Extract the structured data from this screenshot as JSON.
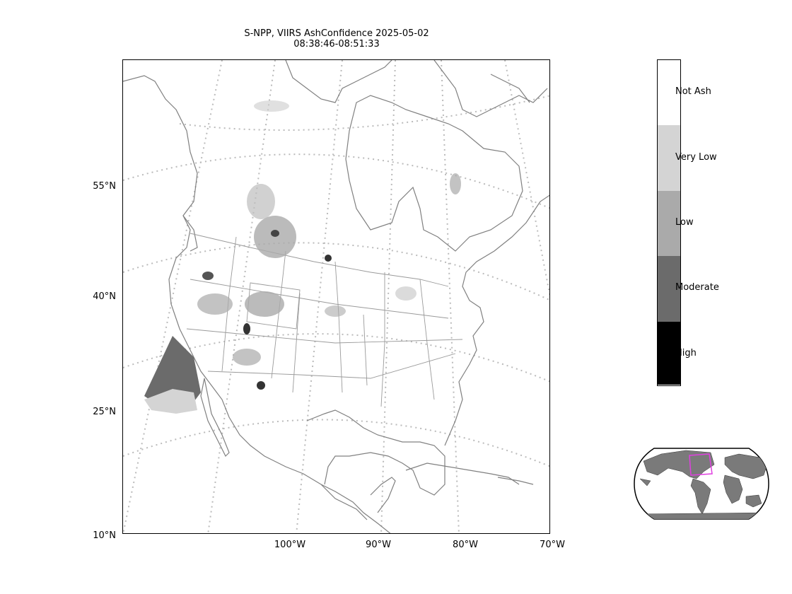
{
  "title": {
    "line1": "S-NPP, VIIRS AshConfidence 2025-05-02",
    "line2": "08:38:46-08:51:33"
  },
  "lat_labels": [
    "55°N",
    "40°N",
    "25°N",
    "10°N"
  ],
  "lon_labels": [
    "100°W",
    "90°W",
    "80°W",
    "70°W"
  ],
  "legend": {
    "categories": [
      {
        "label": "Not Ash",
        "color": "#ffffff"
      },
      {
        "label": "Very Low",
        "color": "#d4d4d4"
      },
      {
        "label": "Low",
        "color": "#aaaaaa"
      },
      {
        "label": "Moderate",
        "color": "#6b6b6b"
      },
      {
        "label": "High",
        "color": "#000000"
      }
    ]
  },
  "colors": {
    "coastline": "#808080",
    "graticule": "#bbbbbb",
    "inset_land": "#7a7a7a",
    "inset_box": "#e040e0"
  }
}
